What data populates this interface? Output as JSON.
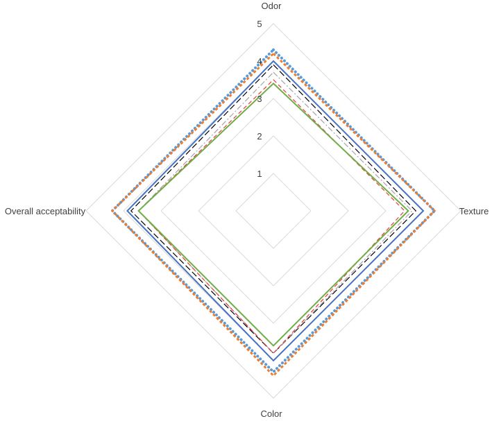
{
  "chart_data": {
    "type": "radar",
    "title": "",
    "axes": [
      "Odor",
      "Texture",
      "Color",
      "Overall acceptability"
    ],
    "rmin": 0,
    "rmax": 5,
    "ticks": [
      {
        "value": 1,
        "label": "1"
      },
      {
        "value": 2,
        "label": "2"
      },
      {
        "value": 3,
        "label": "3"
      },
      {
        "value": 4,
        "label": "4"
      },
      {
        "value": 5,
        "label": "5"
      }
    ],
    "grid": true,
    "legend": "none",
    "series": [
      {
        "values": [
          4.3,
          4.3,
          4.3,
          4.3
        ],
        "color": "#5B9BD5",
        "dash": "dotted",
        "width": 4
      },
      {
        "values": [
          4.2,
          4.3,
          4.4,
          4.3
        ],
        "color": "#ED7D31",
        "dash": "dash-dense",
        "width": 3
      },
      {
        "values": [
          4.0,
          4.0,
          4.0,
          3.9
        ],
        "color": "#4472C4",
        "dash": "solid",
        "width": 2
      },
      {
        "values": [
          3.9,
          3.8,
          3.8,
          3.8
        ],
        "color": "#000000",
        "dash": "longdash",
        "width": 1.2
      },
      {
        "values": [
          3.7,
          3.7,
          3.8,
          3.6
        ],
        "color": "#A5A5A5",
        "dash": "dashdot",
        "width": 1.2
      },
      {
        "values": [
          3.5,
          3.5,
          3.8,
          3.6
        ],
        "color": "#E7383A",
        "dash": "dash",
        "width": 1.2
      },
      {
        "values": [
          3.4,
          3.6,
          3.6,
          3.6
        ],
        "color": "#70AD47",
        "dash": "solid",
        "width": 2
      }
    ]
  }
}
